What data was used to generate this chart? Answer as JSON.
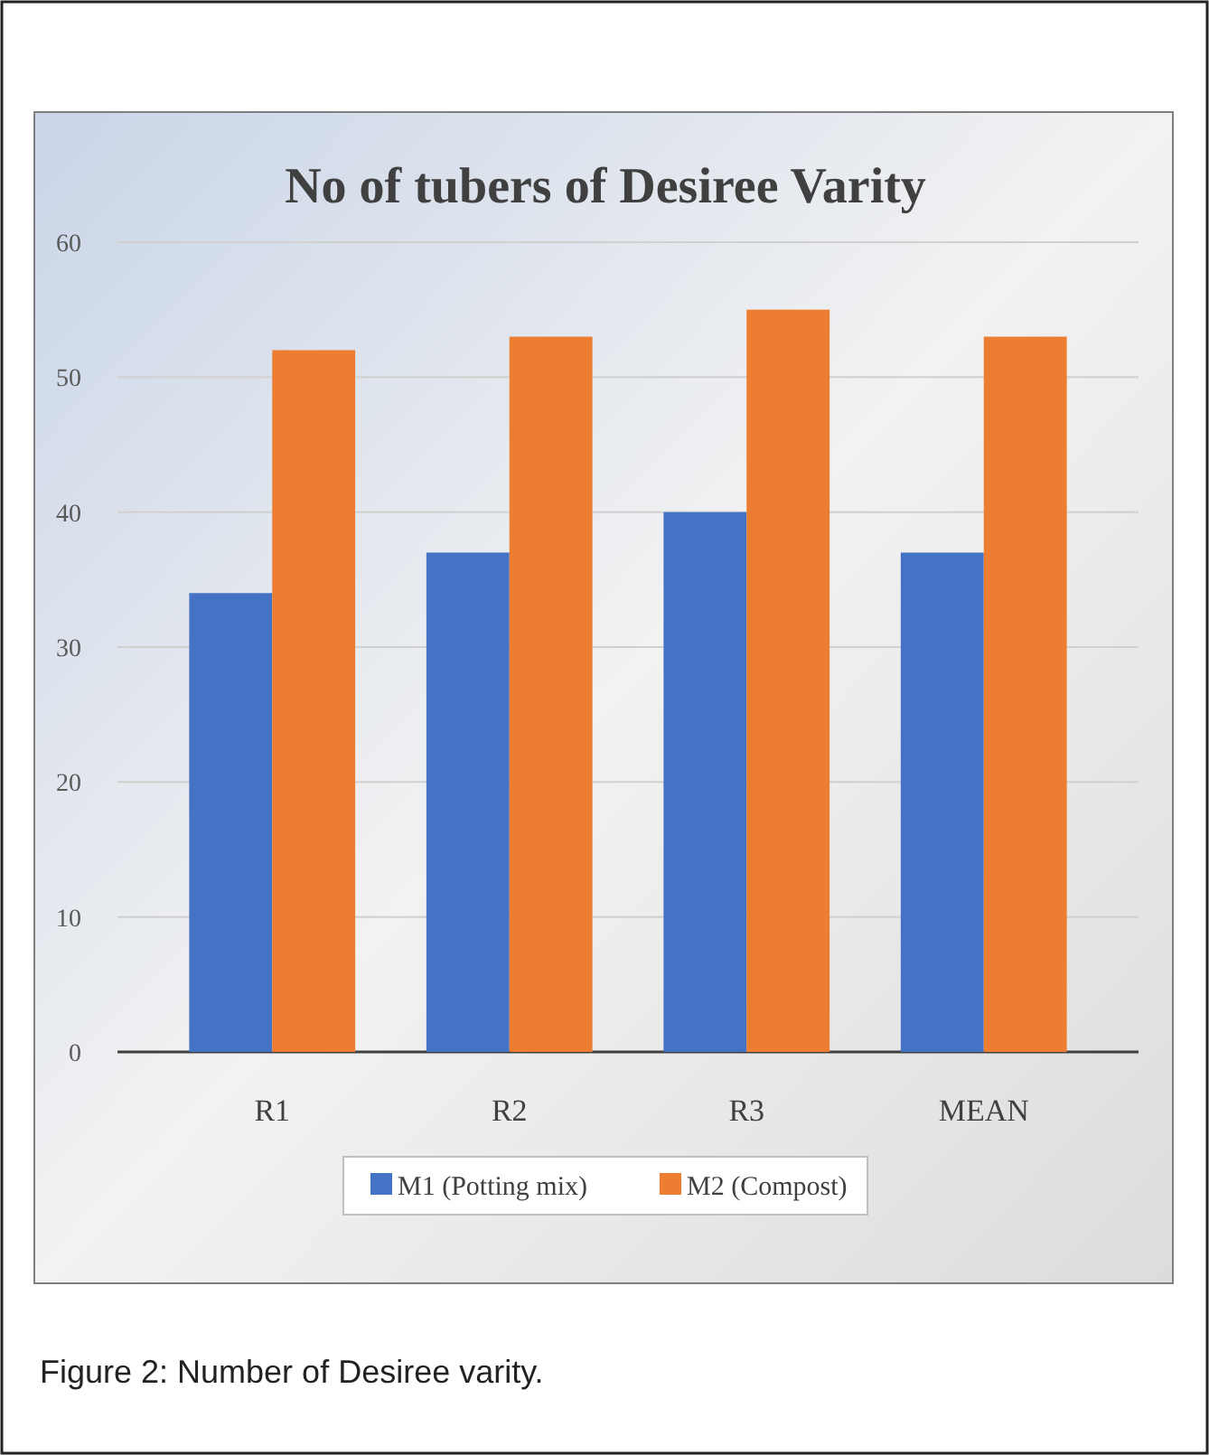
{
  "chart_data": {
    "type": "bar",
    "title": "No of tubers of Desiree Varity",
    "categories": [
      "R1",
      "R2",
      "R3",
      "MEAN"
    ],
    "series": [
      {
        "name": "M1 (Potting mix)",
        "color": "#4472c4",
        "values": [
          34,
          37,
          40,
          37
        ]
      },
      {
        "name": "M2 (Compost)",
        "color": "#ed7d31",
        "values": [
          52,
          53,
          55,
          53
        ]
      }
    ],
    "ylim": [
      0,
      60
    ],
    "yticks": [
      0,
      10,
      20,
      30,
      40,
      50,
      60
    ],
    "grid": "y",
    "legend": "bottom",
    "annotations": [
      "Figure 2: Number of Desiree varity."
    ]
  }
}
